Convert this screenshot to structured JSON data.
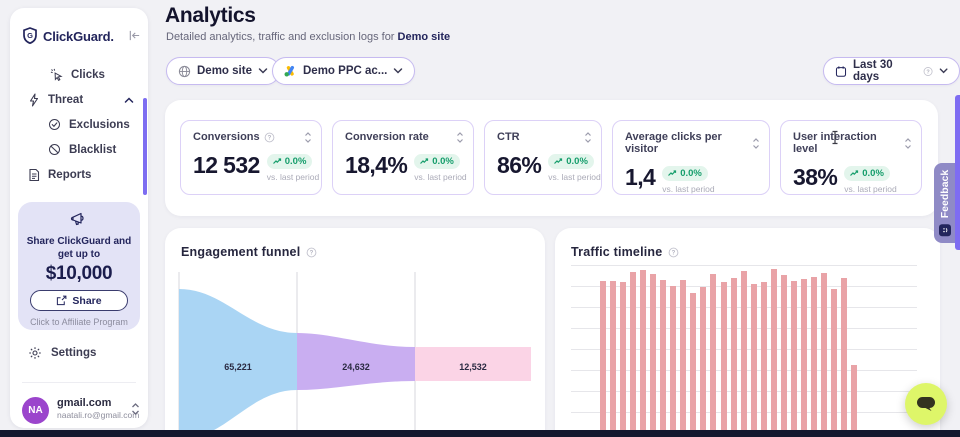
{
  "brand": {
    "name": "ClickGuard.",
    "logo_letter": "G"
  },
  "sidebar": {
    "nav": [
      {
        "label": "Clicks"
      },
      {
        "label": "Threat"
      },
      {
        "label": "Exclusions"
      },
      {
        "label": "Blacklist"
      },
      {
        "label": "Reports"
      }
    ],
    "promo": {
      "line1": "Share ClickGuard and",
      "line2": "get up to",
      "amount": "$10,000",
      "share_button": "Share",
      "footnote": "Click to Affiliate Program"
    },
    "settings_label": "Settings",
    "account": {
      "initials": "NA",
      "name": "gmail.com",
      "email": "naatali.ro@gmail.com"
    }
  },
  "header": {
    "title": "Analytics",
    "subtitle_prefix": "Detailed analytics, traffic and exclusion logs for ",
    "subtitle_target": "Demo site"
  },
  "filters": {
    "site_label": "Demo site",
    "ppc_label": "Demo PPC ac...",
    "date_label": "Last 30 days"
  },
  "kpis": [
    {
      "label": "Conversions",
      "value": "12 532",
      "change": "0.0%",
      "compare": "vs. last period"
    },
    {
      "label": "Conversion rate",
      "value": "18,4%",
      "change": "0.0%",
      "compare": "vs. last period"
    },
    {
      "label": "CTR",
      "value": "86%",
      "change": "0.0%",
      "compare": "vs. last period"
    },
    {
      "label": "Average clicks per visitor",
      "value": "1,4",
      "change": "0.0%",
      "compare": "vs. last period"
    },
    {
      "label": "User interaction level",
      "value": "38%",
      "change": "0.0%",
      "compare": "vs. last period"
    }
  ],
  "sections": {
    "funnel_title": "Engagement funnel",
    "timeline_title": "Traffic timeline"
  },
  "feedback_label": "Feedback",
  "icons": [
    "shield-logo-icon",
    "collapse-sidebar-icon",
    "click-icon",
    "lightning-icon",
    "check-circle-icon",
    "block-circle-icon",
    "document-icon",
    "megaphone-icon",
    "external-link-icon",
    "gear-icon",
    "chevron-up-icon",
    "chevron-down-icon",
    "up-down-chevron-icon",
    "sort-icon",
    "info-icon",
    "globe-icon",
    "google-ads-icon",
    "calendar-icon",
    "trend-up-icon",
    "smiley-icon",
    "chat-bubble-icon",
    "text-cursor"
  ],
  "colors": {
    "brand_navy": "#23255c",
    "accent_purple": "#7d6df1",
    "badge_green": "#159d6b",
    "badge_green_bg": "#e3f5ec",
    "funnel_blue": "#aad5f4",
    "funnel_purple": "#c9aef1",
    "funnel_pink": "#fbd4e6",
    "bar_pink": "#e9a3a7",
    "feedback_bg": "#8f8ac6",
    "chat_button": "#def669",
    "promo_bg": "#e3e3f6"
  },
  "chart_data": [
    {
      "type": "funnel",
      "title": "Engagement funnel",
      "stages": [
        {
          "label": "65,221",
          "value": 65221,
          "color": "#aad5f4"
        },
        {
          "label": "24,632",
          "value": 24632,
          "color": "#c9aef1"
        },
        {
          "label": "12,532",
          "value": 12532,
          "color": "#fbd4e6"
        }
      ]
    },
    {
      "type": "bar",
      "title": "Traffic timeline",
      "bar_color": "#e9a3a7",
      "x": "days of last 30-day period (axis labels cropped out of view)",
      "values": [
        7,
        156,
        156,
        155,
        165,
        167,
        163,
        157,
        151,
        157,
        144,
        150,
        163,
        155,
        159,
        166,
        153,
        155,
        168,
        162,
        156,
        158,
        160,
        164,
        148,
        159,
        72
      ],
      "ylim_note": "y-axis unlabeled; values are relative heights read from gridlines"
    }
  ]
}
